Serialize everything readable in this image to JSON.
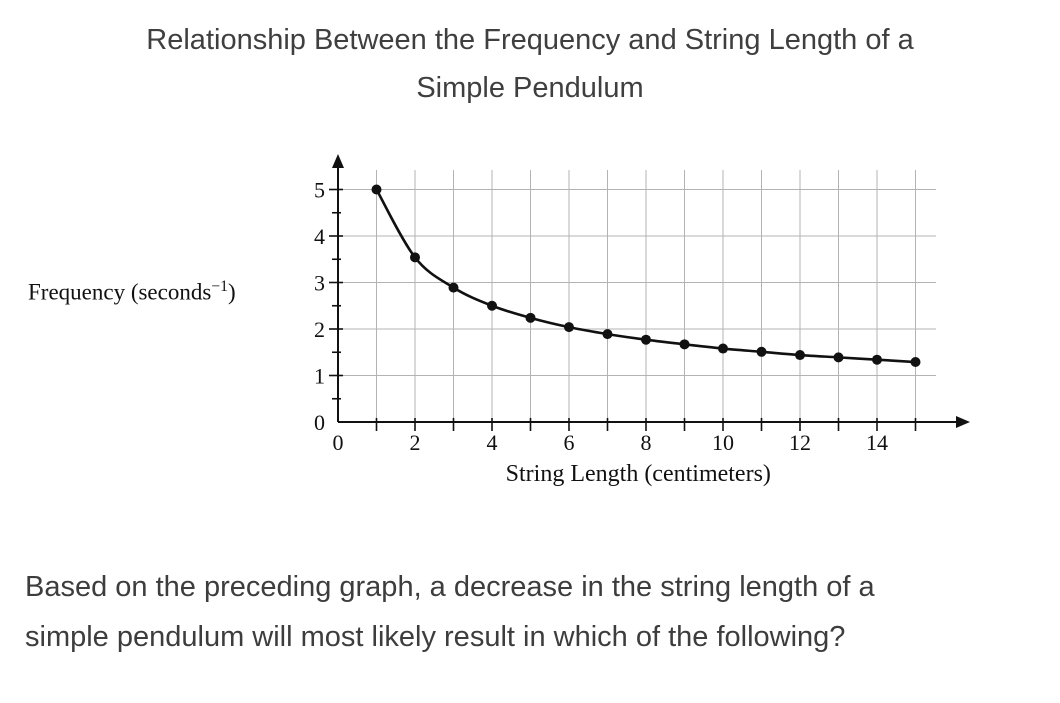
{
  "title": {
    "lines": [
      "Relationship Between the Frequency and String Length of a",
      "Simple Pendulum"
    ]
  },
  "question": {
    "lines": [
      "Based on the preceding graph, a decrease in the string length of a",
      "simple pendulum will most likely result in which of the following?"
    ]
  },
  "chart_data": {
    "type": "line",
    "title": "Relationship Between the Frequency and String Length of a Simple Pendulum",
    "xlabel": "String Length (centimeters)",
    "ylabel": {
      "prefix": "Frequency (seconds",
      "superscript": "−1",
      "suffix": ")"
    },
    "x": [
      1,
      2,
      3,
      4,
      5,
      6,
      7,
      8,
      9,
      10,
      11,
      12,
      13,
      14,
      15
    ],
    "y": [
      5,
      3.54,
      2.89,
      2.5,
      2.24,
      2.04,
      1.89,
      1.77,
      1.67,
      1.58,
      1.51,
      1.44,
      1.39,
      1.34,
      1.29
    ],
    "xlim": [
      0,
      16
    ],
    "ylim": [
      0,
      5.6
    ],
    "x_ticks_labeled": [
      0,
      2,
      4,
      6,
      8,
      10,
      12,
      14
    ],
    "y_ticks_labeled": [
      0,
      1,
      2,
      3,
      4,
      5
    ],
    "x_minor_step": 1,
    "y_minor_step": 0.5,
    "grid": true,
    "colors": {
      "line": "#111111",
      "point": "#111111",
      "grid": "#b3b3b3",
      "axis": "#111111",
      "text": "#111111"
    }
  }
}
